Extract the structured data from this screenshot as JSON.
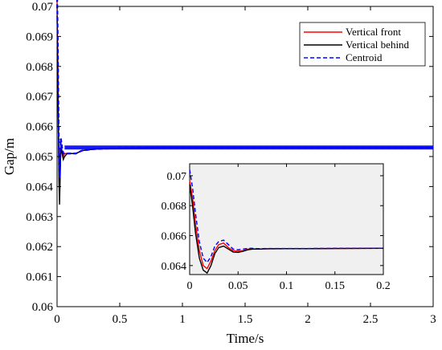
{
  "chart_data": [
    {
      "type": "line",
      "xlabel": "Time/s",
      "ylabel": "Gap/m",
      "xlim": [
        0,
        3
      ],
      "ylim": [
        0.06,
        0.07
      ],
      "xticks": [
        0,
        0.5,
        1,
        1.5,
        2,
        2.5,
        3
      ],
      "xtick_labels": [
        "0",
        "0.5",
        "1",
        "1.5",
        "2",
        "2.5",
        "3"
      ],
      "yticks": [
        0.06,
        0.061,
        0.062,
        0.063,
        0.064,
        0.065,
        0.066,
        0.067,
        0.068,
        0.069,
        0.07
      ],
      "ytick_labels": [
        "0.06",
        "0.061",
        "0.062",
        "0.063",
        "0.064",
        "0.065",
        "0.066",
        "0.067",
        "0.068",
        "0.069",
        "0.07"
      ],
      "legend_position": "top-right",
      "grid": false,
      "series": [
        {
          "name": "Vertical front",
          "color": "#ff0000",
          "style": "solid",
          "x": [
            0,
            0.005,
            0.01,
            0.015,
            0.02,
            0.03,
            0.04,
            0.05,
            0.06,
            0.08,
            0.1,
            0.15,
            0.2,
            0.3,
            0.5,
            0.8,
            1.0,
            1.5,
            2.0,
            2.5,
            3.0
          ],
          "y": [
            0.0702,
            0.0686,
            0.0665,
            0.0647,
            0.0638,
            0.0654,
            0.0652,
            0.065,
            0.0651,
            0.0651,
            0.0651,
            0.0651,
            0.0652,
            0.06525,
            0.06528,
            0.0653,
            0.0653,
            0.0653,
            0.0653,
            0.0653,
            0.0653
          ]
        },
        {
          "name": "Vertical behind",
          "color": "#000000",
          "style": "solid",
          "x": [
            0,
            0.005,
            0.01,
            0.015,
            0.02,
            0.03,
            0.04,
            0.05,
            0.06,
            0.08,
            0.1,
            0.15,
            0.2,
            0.3,
            0.5,
            0.8,
            1.0,
            1.5,
            2.0,
            2.5,
            3.0
          ],
          "y": [
            0.0697,
            0.068,
            0.066,
            0.0642,
            0.0634,
            0.0653,
            0.0651,
            0.0649,
            0.065,
            0.0651,
            0.0651,
            0.0651,
            0.0652,
            0.06525,
            0.06528,
            0.0653,
            0.0653,
            0.0653,
            0.0653,
            0.0653,
            0.0653
          ]
        },
        {
          "name": "Centroid",
          "color": "#0000ff",
          "style": "dashed",
          "x": [
            0,
            0.005,
            0.01,
            0.015,
            0.02,
            0.03,
            0.04,
            0.05,
            0.06,
            0.08,
            0.1,
            0.15,
            0.2,
            0.3,
            0.5,
            0.8,
            1.0,
            1.5,
            2.0,
            2.5,
            3.0
          ],
          "y": [
            0.0705,
            0.069,
            0.067,
            0.0652,
            0.0643,
            0.0656,
            0.0653,
            0.0651,
            0.0651,
            0.0651,
            0.0651,
            0.0651,
            0.0652,
            0.06525,
            0.06528,
            0.0653,
            0.0653,
            0.0653,
            0.0653,
            0.0653,
            0.0653
          ]
        }
      ]
    },
    {
      "type": "line",
      "xlabel": "",
      "ylabel": "",
      "xlim": [
        0,
        0.2
      ],
      "ylim": [
        0.0634,
        0.0708
      ],
      "xticks": [
        0,
        0.05,
        0.1,
        0.15,
        0.2
      ],
      "xtick_labels": [
        "0",
        "0.05",
        "0.1",
        "0.15",
        "0.2"
      ],
      "yticks": [
        0.064,
        0.066,
        0.068,
        0.07
      ],
      "ytick_labels": [
        "0.064",
        "0.066",
        "0.068",
        "0.07"
      ],
      "background": "#f0f0f0",
      "grid": false,
      "series": [
        {
          "name": "Vertical front",
          "color": "#ff0000",
          "style": "solid",
          "x": [
            0,
            0.003,
            0.006,
            0.01,
            0.014,
            0.018,
            0.022,
            0.026,
            0.03,
            0.035,
            0.04,
            0.045,
            0.05,
            0.055,
            0.06,
            0.065,
            0.07,
            0.08,
            0.1,
            0.12,
            0.15,
            0.2
          ],
          "y": [
            0.0697,
            0.0685,
            0.0668,
            0.065,
            0.064,
            0.0638,
            0.0643,
            0.065,
            0.0654,
            0.0655,
            0.0652,
            0.065,
            0.06495,
            0.065,
            0.0651,
            0.06512,
            0.0651,
            0.06512,
            0.06513,
            0.06513,
            0.06514,
            0.06515
          ]
        },
        {
          "name": "Vertical behind",
          "color": "#000000",
          "style": "solid",
          "x": [
            0,
            0.003,
            0.006,
            0.01,
            0.014,
            0.018,
            0.022,
            0.026,
            0.03,
            0.035,
            0.04,
            0.045,
            0.05,
            0.055,
            0.06,
            0.065,
            0.07,
            0.08,
            0.1,
            0.12,
            0.15,
            0.2
          ],
          "y": [
            0.0694,
            0.068,
            0.0662,
            0.0645,
            0.0637,
            0.0635,
            0.064,
            0.0648,
            0.0652,
            0.0653,
            0.0651,
            0.0649,
            0.06488,
            0.06495,
            0.06505,
            0.0651,
            0.0651,
            0.06512,
            0.06513,
            0.06513,
            0.06514,
            0.06515
          ]
        },
        {
          "name": "Centroid",
          "color": "#0000ff",
          "style": "dashed",
          "x": [
            0,
            0.003,
            0.006,
            0.01,
            0.014,
            0.018,
            0.022,
            0.026,
            0.03,
            0.035,
            0.04,
            0.045,
            0.05,
            0.055,
            0.06,
            0.065,
            0.07,
            0.08,
            0.1,
            0.12,
            0.15,
            0.2
          ],
          "y": [
            0.0704,
            0.0692,
            0.0675,
            0.0656,
            0.0645,
            0.0642,
            0.0646,
            0.0653,
            0.0656,
            0.0657,
            0.0654,
            0.0651,
            0.06505,
            0.0651,
            0.06515,
            0.06515,
            0.06513,
            0.06514,
            0.06514,
            0.06514,
            0.06515,
            0.06515
          ]
        }
      ]
    }
  ]
}
